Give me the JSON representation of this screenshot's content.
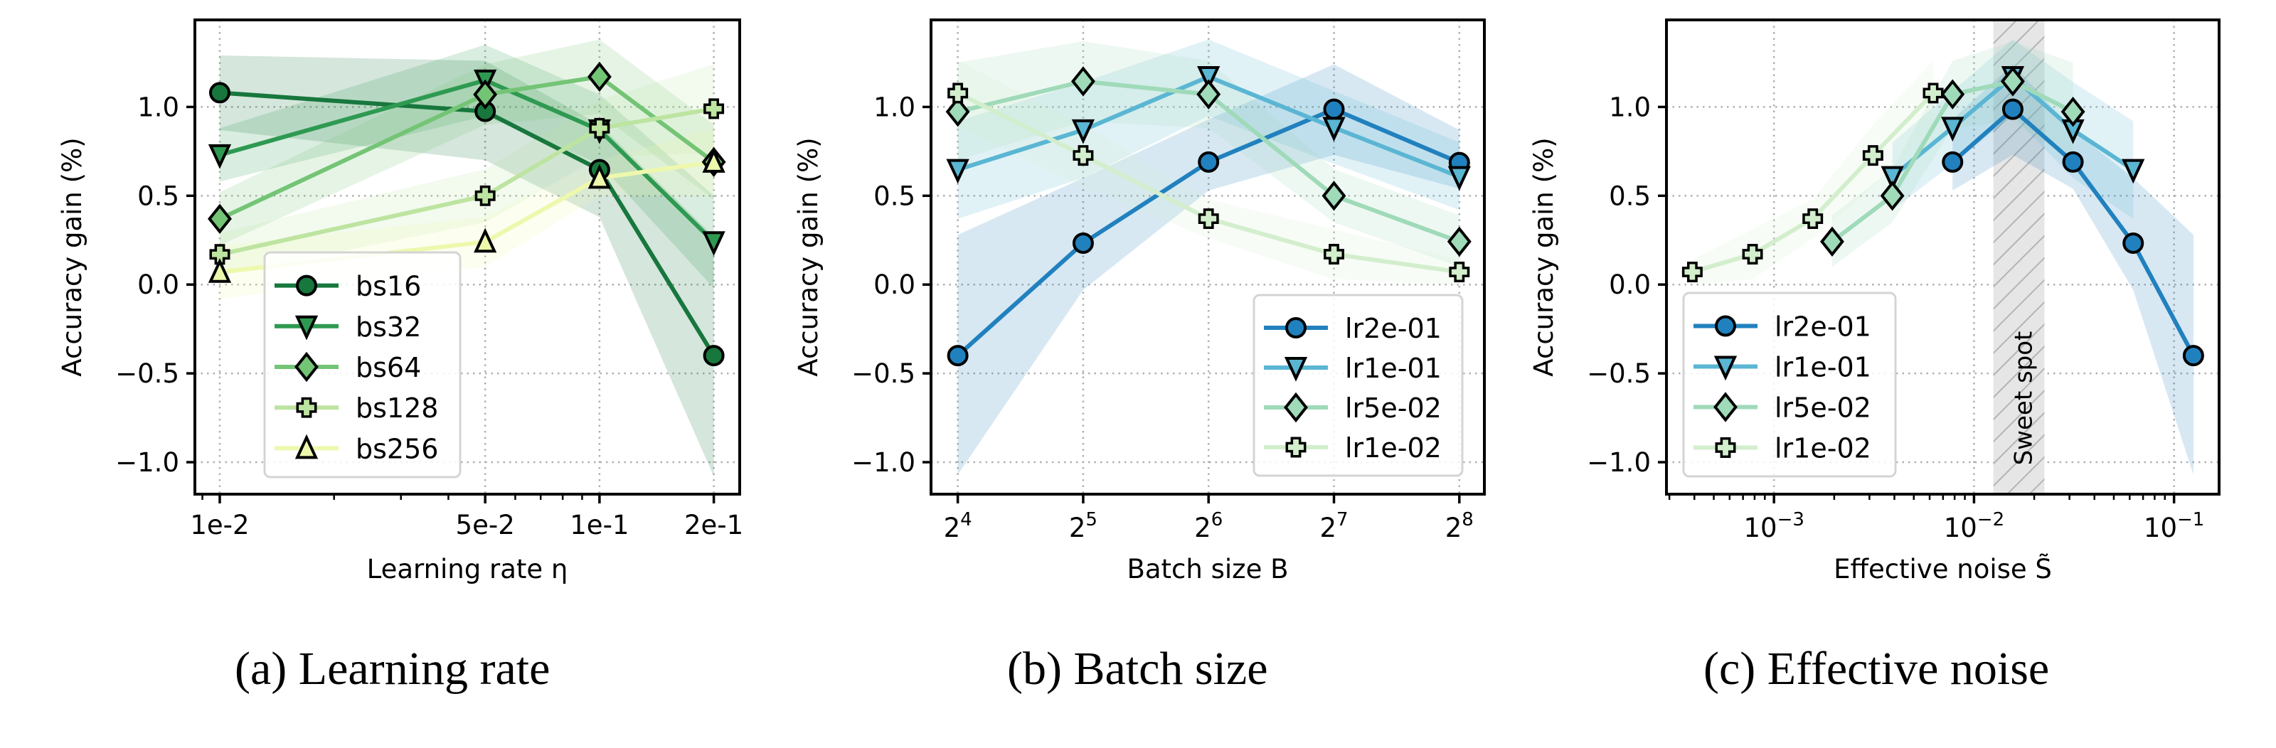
{
  "figure": {
    "captions": [
      "(a) Learning rate",
      "(b) Batch size",
      "(c) Effective noise"
    ]
  },
  "chart_data": [
    {
      "id": "a",
      "type": "line",
      "title": "",
      "caption": "(a) Learning rate",
      "xlabel": "Learning rate η",
      "ylabel": "Accuracy gain (%)",
      "xscale": "log",
      "xlim": [
        0.0086,
        0.234
      ],
      "ylim": [
        -1.18,
        1.49
      ],
      "xticks": [
        0.01,
        0.05,
        0.1,
        0.2
      ],
      "xtick_labels": [
        "1e-2",
        "5e-2",
        "1e-1",
        "2e-1"
      ],
      "yticks": [
        -1.0,
        -0.5,
        0.0,
        0.5,
        1.0
      ],
      "ytick_labels": [
        "−1.0",
        "−0.5",
        "0.0",
        "0.5",
        "1.0"
      ],
      "grid": true,
      "legend_position": "lower-left",
      "x": [
        0.01,
        0.05,
        0.1,
        0.2
      ],
      "series": [
        {
          "name": "bs16",
          "marker": "circle",
          "color": "#17773d",
          "values": [
            1.08,
            0.975,
            0.647,
            -0.4
          ],
          "lower": [
            0.87,
            0.7,
            0.38,
            -1.08
          ],
          "upper": [
            1.29,
            1.26,
            0.9,
            0.27
          ]
        },
        {
          "name": "bs32",
          "marker": "triangle-down",
          "color": "#2e9a51",
          "values": [
            0.73,
            1.15,
            0.87,
            0.24
          ],
          "lower": [
            0.58,
            0.95,
            0.68,
            -0.02
          ],
          "upper": [
            0.88,
            1.35,
            1.07,
            0.5
          ]
        },
        {
          "name": "bs64",
          "marker": "diamond",
          "color": "#74c476",
          "values": [
            0.37,
            1.07,
            1.17,
            0.69
          ],
          "lower": [
            0.22,
            0.9,
            0.96,
            0.48
          ],
          "upper": [
            0.52,
            1.24,
            1.38,
            0.9
          ]
        },
        {
          "name": "bs128",
          "marker": "x-filled",
          "color": "#bde4a0",
          "values": [
            0.17,
            0.5,
            0.88,
            0.99
          ],
          "lower": [
            0.05,
            0.35,
            0.72,
            0.74
          ],
          "upper": [
            0.29,
            0.65,
            1.04,
            1.24
          ]
        },
        {
          "name": "bs256",
          "marker": "triangle-up",
          "color": "#eef8ad",
          "values": [
            0.07,
            0.24,
            0.6,
            0.69
          ],
          "lower": [
            -0.08,
            0.1,
            0.5,
            0.5
          ],
          "upper": [
            0.22,
            0.38,
            0.7,
            0.88
          ]
        }
      ]
    },
    {
      "id": "b",
      "type": "line",
      "title": "",
      "caption": "(b) Batch size",
      "xlabel": "Batch size B",
      "ylabel": "Accuracy gain (%)",
      "xscale": "log2",
      "xlim": [
        13.8,
        294
      ],
      "ylim": [
        -1.18,
        1.49
      ],
      "xticks": [
        16,
        32,
        64,
        128,
        256
      ],
      "xtick_labels": [
        [
          "2",
          "4"
        ],
        [
          "2",
          "5"
        ],
        [
          "2",
          "6"
        ],
        [
          "2",
          "7"
        ],
        [
          "2",
          "8"
        ]
      ],
      "yticks": [
        -1.0,
        -0.5,
        0.0,
        0.5,
        1.0
      ],
      "ytick_labels": [
        "−1.0",
        "−0.5",
        "0.0",
        "0.5",
        "1.0"
      ],
      "grid": true,
      "legend_position": "lower-right",
      "x": [
        16,
        32,
        64,
        128,
        256
      ],
      "series": [
        {
          "name": "lr2e-01",
          "marker": "circle",
          "color": "#2181be",
          "values": [
            -0.4,
            0.233,
            0.69,
            0.987,
            0.687
          ],
          "lower": [
            -1.07,
            -0.03,
            0.53,
            0.73,
            0.54
          ],
          "upper": [
            0.28,
            0.6,
            0.93,
            1.24,
            0.87
          ]
        },
        {
          "name": "lr1e-01",
          "marker": "triangle-down",
          "color": "#5ab6d3",
          "values": [
            0.647,
            0.87,
            1.17,
            0.884,
            0.607
          ],
          "lower": [
            0.37,
            0.6,
            0.95,
            0.68,
            0.42
          ],
          "upper": [
            0.92,
            1.14,
            1.38,
            1.09,
            0.8
          ]
        },
        {
          "name": "lr5e-02",
          "marker": "diamond",
          "color": "#9fdab9",
          "values": [
            0.973,
            1.144,
            1.071,
            0.5,
            0.242
          ],
          "lower": [
            0.7,
            0.92,
            0.88,
            0.35,
            0.1
          ],
          "upper": [
            1.25,
            1.37,
            1.26,
            0.65,
            0.39
          ]
        },
        {
          "name": "lr1e-02",
          "marker": "x-filled",
          "color": "#d3eecd",
          "values": [
            1.078,
            0.727,
            0.371,
            0.171,
            0.071
          ],
          "lower": [
            0.9,
            0.55,
            0.26,
            0.03,
            0.0
          ],
          "upper": [
            1.26,
            0.9,
            0.48,
            0.31,
            0.14
          ]
        }
      ]
    },
    {
      "id": "c",
      "type": "line",
      "title": "",
      "caption": "(c) Effective noise",
      "xlabel": "Effective noise S̃",
      "ylabel": "Accuracy gain (%)",
      "xscale": "log",
      "xlim": [
        0.00029,
        0.168
      ],
      "ylim": [
        -1.18,
        1.49
      ],
      "xticks": [
        0.001,
        0.01,
        0.1
      ],
      "xtick_labels": [
        [
          "10",
          "−3"
        ],
        [
          "10",
          "−2"
        ],
        [
          "10",
          "−1"
        ]
      ],
      "yticks": [
        -1.0,
        -0.5,
        0.0,
        0.5,
        1.0
      ],
      "ytick_labels": [
        "−1.0",
        "−0.5",
        "0.0",
        "0.5",
        "1.0"
      ],
      "grid": true,
      "legend_position": "lower-left",
      "annotations": [
        {
          "type": "shaded-span",
          "label": "Sweet spot",
          "xrange": [
            0.0125,
            0.0225
          ]
        }
      ],
      "series": [
        {
          "name": "lr2e-01",
          "marker": "circle",
          "color": "#2181be",
          "x": [
            0.0078125,
            0.015625,
            0.03125,
            0.0625,
            0.125
          ],
          "values": [
            0.69,
            0.987,
            0.69,
            0.233,
            -0.4
          ],
          "lower": [
            0.53,
            0.73,
            0.54,
            -0.03,
            -1.07
          ],
          "upper": [
            0.93,
            1.24,
            0.87,
            0.6,
            0.28
          ]
        },
        {
          "name": "lr1e-01",
          "marker": "triangle-down",
          "color": "#5ab6d3",
          "x": [
            0.00390625,
            0.0078125,
            0.015625,
            0.03125,
            0.0625
          ],
          "values": [
            0.607,
            0.884,
            1.17,
            0.87,
            0.647
          ],
          "lower": [
            0.42,
            0.68,
            0.95,
            0.6,
            0.37
          ],
          "upper": [
            0.8,
            1.09,
            1.38,
            1.14,
            0.92
          ]
        },
        {
          "name": "lr5e-02",
          "marker": "diamond",
          "color": "#9fdab9",
          "x": [
            0.001953125,
            0.00390625,
            0.0078125,
            0.015625,
            0.03125
          ],
          "values": [
            0.242,
            0.5,
            1.071,
            1.144,
            0.973
          ],
          "lower": [
            0.1,
            0.35,
            0.88,
            0.92,
            0.7
          ],
          "upper": [
            0.39,
            0.65,
            1.26,
            1.37,
            1.25
          ]
        },
        {
          "name": "lr1e-02",
          "marker": "x-filled",
          "color": "#d3eecd",
          "x": [
            0.000390625,
            0.00078125,
            0.0015625,
            0.003125,
            0.00625
          ],
          "values": [
            0.071,
            0.171,
            0.371,
            0.727,
            1.078
          ],
          "lower": [
            0.0,
            0.03,
            0.26,
            0.55,
            0.9
          ],
          "upper": [
            0.14,
            0.31,
            0.48,
            0.9,
            1.26
          ]
        }
      ]
    }
  ]
}
